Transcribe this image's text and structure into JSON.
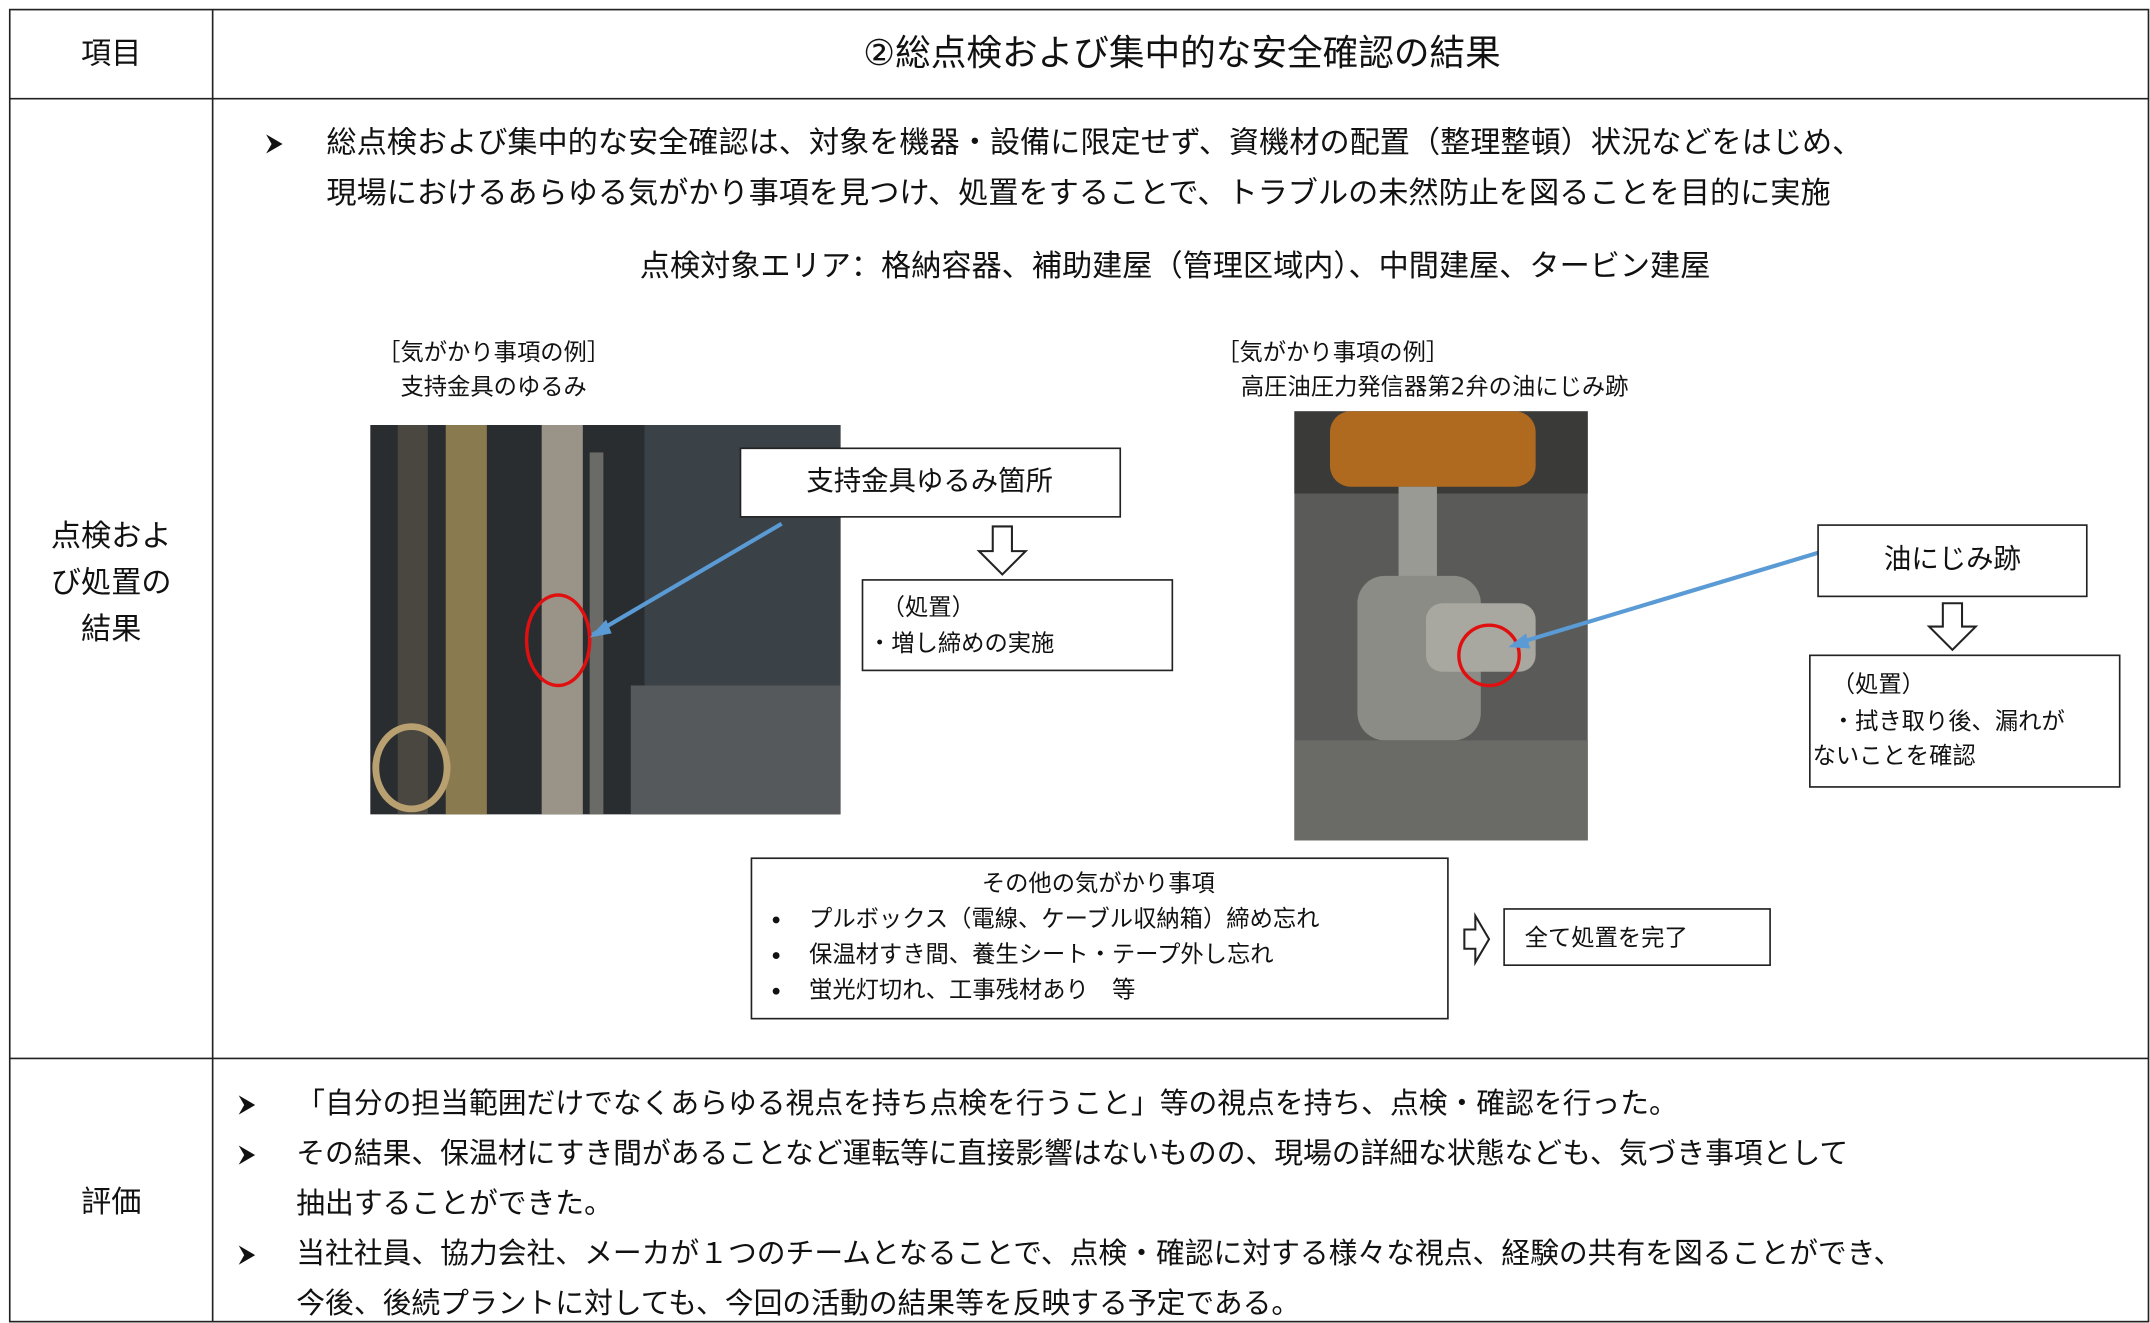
{
  "header": {
    "item": "項目",
    "title": "②総点検および集中的な安全確認の結果"
  },
  "inspection": {
    "label_lines": [
      "点検およ",
      "び処置の",
      "結果"
    ],
    "intro_lines": [
      "総点検および集中的な安全確認は、対象を機器・設備に限定せず、資機材の配置（整理整頓）状況などをはじめ、",
      "現場におけるあらゆる気がかり事項を見つけ、処置をすることで、トラブルの未然防止を図ることを目的に実施"
    ],
    "area": "点検対象エリア：格納容器、補助建屋（管理区域内）、中間建屋、タービン建屋",
    "examples": [
      {
        "heading": "［気がかり事項の例］",
        "caption": "支持金具のゆるみ",
        "callout": "支持金具ゆるみ箇所",
        "action_lines": [
          "（処置）",
          "・増し締めの実施"
        ]
      },
      {
        "heading": "［気がかり事項の例］",
        "caption": "高圧油圧力発信器第2弁の油にじみ跡",
        "callout": "油にじみ跡",
        "action_lines": [
          "（処置）",
          "・拭き取り後、漏れが",
          "ないことを確認"
        ]
      }
    ],
    "others": {
      "title": "その他の気がかり事項",
      "items": [
        "プルボックス（電線、ケーブル収納箱）締め忘れ",
        "保温材すき間、養生シート・テープ外し忘れ",
        "蛍光灯切れ、工事残材あり　等"
      ]
    },
    "result": "全て処置を完了"
  },
  "evaluation": {
    "label": "評価",
    "items": [
      [
        "「自分の担当範囲だけでなくあらゆる視点を持ち点検を行うこと」等の視点を持ち、点検・確認を行った。"
      ],
      [
        "その結果、保温材にすき間があることなど運転等に直接影響はないものの、現場の詳細な状態なども、気づき事項として",
        "抽出することができた。"
      ],
      [
        "当社社員、協力会社、メーカが１つのチームとなることで、点検・確認に対する様々な視点、経験の共有を図ることができ、",
        "今後、後続プラントに対しても、今回の活動の結果等を反映する予定である。"
      ]
    ]
  }
}
